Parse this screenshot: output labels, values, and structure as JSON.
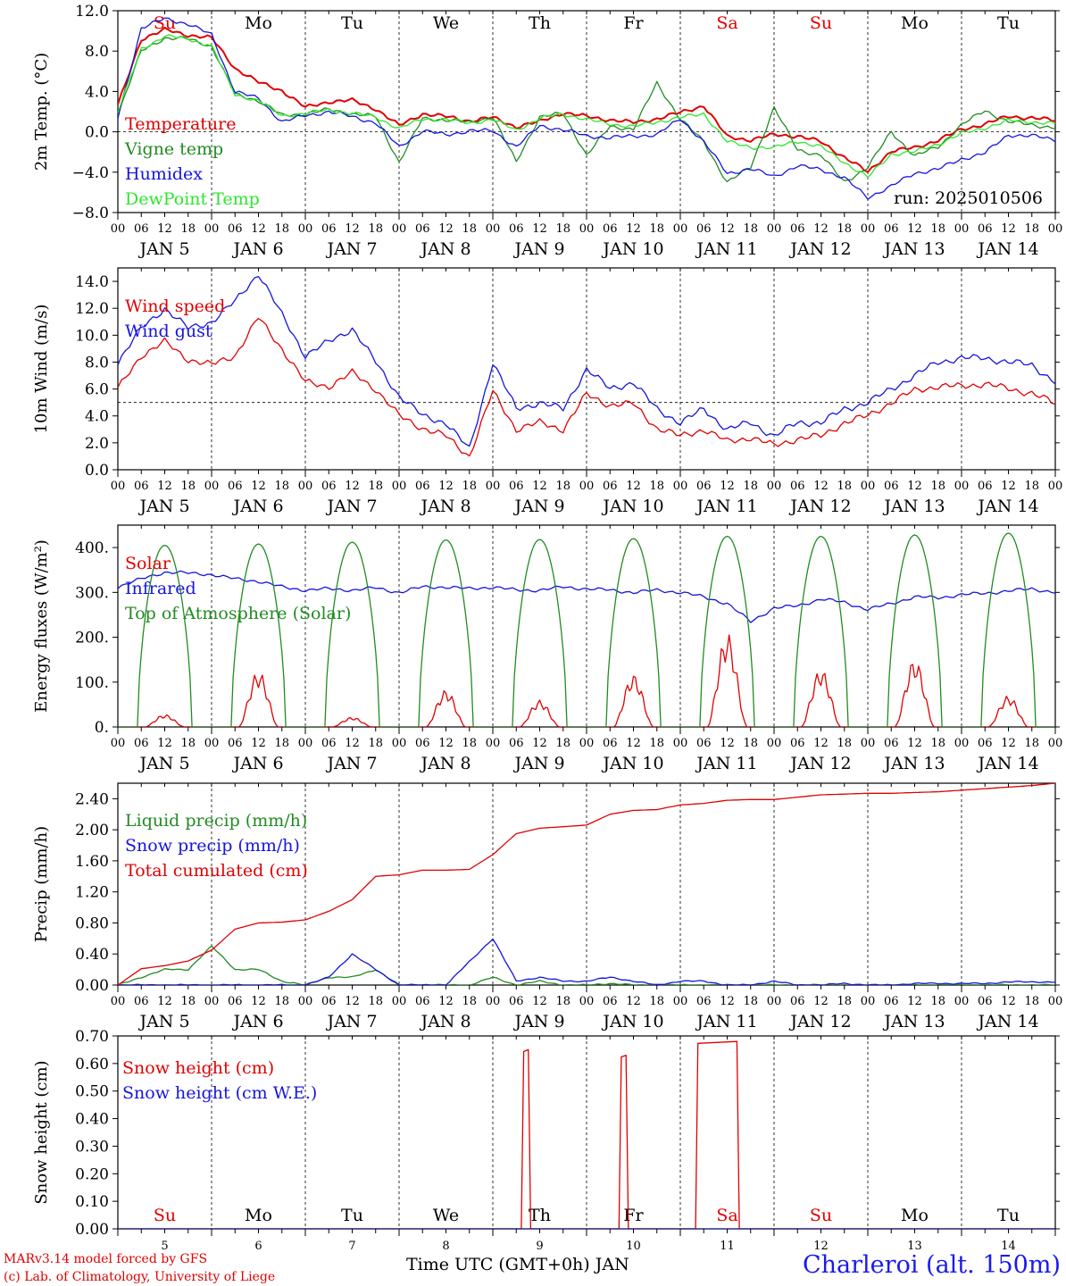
{
  "chart_data": [
    {
      "type": "line",
      "ylabel": "2m Temp. (°C)",
      "ylim": [
        -8,
        12
      ],
      "yticks": [
        "12.0",
        "8.0",
        "4.0",
        "0.0",
        "−4.0",
        "−8.0"
      ],
      "ytick_values": [
        12,
        8,
        4,
        0,
        -4,
        -8
      ],
      "reference_line": 0,
      "annotation": "run: 2025010506",
      "weekday_labels": [
        "Su",
        "Mo",
        "Tu",
        "We",
        "Th",
        "Fr",
        "Sa",
        "Su",
        "Mo",
        "Tu"
      ],
      "weekday_colors": [
        "#e00000",
        "#000000",
        "#000000",
        "#000000",
        "#000000",
        "#000000",
        "#e00000",
        "#e00000",
        "#000000",
        "#000000"
      ],
      "x_hours": [
        0,
        6,
        12,
        18,
        24,
        30,
        36,
        42,
        48,
        54,
        60,
        66,
        72,
        78,
        84,
        90,
        96,
        102,
        108,
        114,
        120,
        126,
        132,
        138,
        144,
        150,
        156,
        162,
        168,
        174,
        180,
        186,
        192,
        198,
        204,
        210,
        216,
        222,
        228,
        234,
        240
      ],
      "series": [
        {
          "name": "Temperature",
          "color": "#e00000",
          "values": [
            2.6,
            9.2,
            10.1,
            9.6,
            9.3,
            6.3,
            4.9,
            4.1,
            2.4,
            3.0,
            3.1,
            2.3,
            0.6,
            1.8,
            1.5,
            1.1,
            1.4,
            0.5,
            1.0,
            1.9,
            1.5,
            1.2,
            0.9,
            1.3,
            1.9,
            2.6,
            -0.5,
            -0.8,
            -0.3,
            -0.4,
            -1.0,
            -2.5,
            -4.0,
            -1.9,
            -1.6,
            -0.8,
            0.2,
            0.8,
            1.5,
            1.4,
            1.1
          ]
        },
        {
          "name": "Vigne temp",
          "color": "#228b22",
          "values": [
            1.7,
            8.0,
            9.3,
            9.2,
            8.5,
            3.7,
            3.1,
            1.6,
            1.8,
            2.2,
            1.8,
            1.5,
            -3.0,
            1.3,
            1.2,
            0.9,
            1.5,
            -3.0,
            1.5,
            1.8,
            -2.3,
            0.5,
            0.3,
            4.8,
            1.3,
            -1.0,
            -5.0,
            -3.5,
            2.4,
            -1.8,
            -2.3,
            -5.0,
            -3.5,
            0.0,
            -2.4,
            -1.5,
            0.7,
            2.1,
            1.0,
            0.7,
            0.4
          ]
        },
        {
          "name": "Humidex",
          "color": "#1515dd",
          "values": [
            1.4,
            10.3,
            11.2,
            10.7,
            9.6,
            4.0,
            3.3,
            1.0,
            1.6,
            2.0,
            1.5,
            0.9,
            -1.5,
            0.1,
            -0.3,
            0.1,
            0.1,
            -1.5,
            0.6,
            0.2,
            -0.4,
            -0.6,
            -0.4,
            -0.3,
            1.3,
            -1.0,
            -4.1,
            -3.7,
            -4.4,
            -3.4,
            -3.7,
            -4.6,
            -6.5,
            -5.4,
            -4.1,
            -3.7,
            -2.7,
            -2.1,
            -0.3,
            -0.4,
            -0.8
          ]
        },
        {
          "name": "DewPoint Temp",
          "color": "#2ee62e",
          "values": [
            2.0,
            8.2,
            9.5,
            9.2,
            8.5,
            3.7,
            3.1,
            1.6,
            1.8,
            2.2,
            1.8,
            1.5,
            0.3,
            1.3,
            1.2,
            0.9,
            1.2,
            0.2,
            1.3,
            1.8,
            1.2,
            0.8,
            0.5,
            1.0,
            1.4,
            1.8,
            -1.0,
            -1.5,
            -1.6,
            -0.9,
            -1.5,
            -3.0,
            -4.5,
            -2.2,
            -2.0,
            -1.2,
            -0.2,
            0.4,
            1.1,
            1.0,
            0.8
          ]
        }
      ]
    },
    {
      "type": "line",
      "ylabel": "10m Wind (m/s)",
      "ylim": [
        0,
        15
      ],
      "yticks": [
        "14.0",
        "12.0",
        "10.0",
        "8.0",
        "6.0",
        "4.0",
        "2.0",
        "0.0"
      ],
      "ytick_values": [
        14,
        12,
        10,
        8,
        6,
        4,
        2,
        0
      ],
      "reference_line": 5,
      "x_hours": [
        0,
        6,
        12,
        18,
        24,
        30,
        36,
        42,
        48,
        54,
        60,
        66,
        72,
        78,
        84,
        90,
        96,
        102,
        108,
        114,
        120,
        126,
        132,
        138,
        144,
        150,
        156,
        162,
        168,
        174,
        180,
        186,
        192,
        198,
        204,
        210,
        216,
        222,
        228,
        234,
        240
      ],
      "series": [
        {
          "name": "Wind speed",
          "color": "#e00000",
          "values": [
            6.0,
            8.5,
            9.5,
            8.2,
            7.8,
            8.5,
            11.3,
            9.0,
            6.5,
            6.2,
            7.2,
            6.0,
            4.0,
            3.1,
            2.5,
            1.0,
            5.8,
            3.0,
            3.5,
            3.0,
            5.6,
            4.8,
            4.9,
            3.1,
            2.5,
            3.0,
            2.1,
            2.4,
            1.8,
            2.3,
            2.5,
            3.5,
            4.0,
            5.0,
            5.9,
            6.2,
            6.2,
            6.4,
            6.0,
            5.7,
            4.9
          ]
        },
        {
          "name": "Wind gust",
          "color": "#1515dd",
          "values": [
            8.0,
            10.5,
            12.0,
            10.5,
            11.0,
            12.5,
            14.6,
            11.5,
            8.5,
            9.5,
            10.5,
            8.0,
            5.5,
            4.0,
            3.5,
            1.5,
            8.0,
            4.5,
            5.0,
            4.5,
            7.5,
            6.0,
            6.5,
            4.5,
            3.5,
            4.5,
            3.0,
            3.5,
            2.5,
            3.5,
            3.5,
            4.5,
            5.0,
            6.0,
            7.0,
            8.0,
            8.3,
            8.3,
            8.0,
            7.8,
            6.5
          ]
        }
      ]
    },
    {
      "type": "line",
      "ylabel": "Energy fluxes (W/m²)",
      "ylim": [
        0,
        450
      ],
      "yticks": [
        "400.",
        "300.",
        "200.",
        "100.",
        "0."
      ],
      "ytick_values": [
        400,
        300,
        200,
        100,
        0
      ],
      "x_hours": [
        0,
        6,
        12,
        18,
        24,
        30,
        36,
        42,
        48,
        54,
        60,
        66,
        72,
        78,
        84,
        90,
        96,
        102,
        108,
        114,
        120,
        126,
        132,
        138,
        144,
        150,
        156,
        162,
        168,
        174,
        180,
        186,
        192,
        198,
        204,
        210,
        216,
        222,
        228,
        234,
        240
      ],
      "series": [
        {
          "name": "Solar",
          "color": "#e00000",
          "peak_values": [
            28,
            125,
            22,
            83,
            60,
            118,
            210,
            130,
            152,
            70
          ]
        },
        {
          "name": "Infrared",
          "color": "#1515dd",
          "values": [
            312,
            330,
            345,
            343,
            340,
            330,
            325,
            312,
            305,
            308,
            305,
            310,
            300,
            312,
            312,
            308,
            312,
            305,
            305,
            312,
            308,
            305,
            300,
            305,
            300,
            290,
            275,
            235,
            265,
            270,
            285,
            278,
            262,
            275,
            290,
            288,
            295,
            298,
            303,
            308,
            300
          ]
        },
        {
          "name": "Top of Atmosphere (Solar)",
          "color": "#228b22",
          "peak_values": [
            405,
            408,
            412,
            417,
            418,
            420,
            425,
            425,
            428,
            432
          ]
        }
      ]
    },
    {
      "type": "line",
      "ylabel": "Precip (mm/h)",
      "ylim": [
        0,
        2.6
      ],
      "yticks": [
        "2.40",
        "2.00",
        "1.60",
        "1.20",
        "0.80",
        "0.40",
        "0.00"
      ],
      "ytick_values": [
        2.4,
        2.0,
        1.6,
        1.2,
        0.8,
        0.4,
        0.0
      ],
      "x_hours": [
        0,
        6,
        12,
        18,
        24,
        30,
        36,
        42,
        48,
        54,
        60,
        66,
        72,
        78,
        84,
        90,
        96,
        102,
        108,
        114,
        120,
        126,
        132,
        138,
        144,
        150,
        156,
        162,
        168,
        174,
        180,
        186,
        192,
        198,
        204,
        210,
        216,
        222,
        228,
        234,
        240
      ],
      "series": [
        {
          "name": "Liquid precip (mm/h)",
          "color": "#228b22",
          "values": [
            0.0,
            0.1,
            0.2,
            0.2,
            0.5,
            0.2,
            0.2,
            0.05,
            0.0,
            0.1,
            0.1,
            0.2,
            0.0,
            0.0,
            0.0,
            0.0,
            0.1,
            0.0,
            0.05,
            0.0,
            0.0,
            0.02,
            0.0,
            0.0,
            0.0,
            0.0,
            0.0,
            0.0,
            0.0,
            0.0,
            0.0,
            0.0,
            0.0,
            0.0,
            0.0,
            0.0,
            0.0,
            0.0,
            0.0,
            0.0,
            0.0
          ]
        },
        {
          "name": "Snow precip (mm/h)",
          "color": "#1515dd",
          "values": [
            0.0,
            0.0,
            0.0,
            0.0,
            0.0,
            0.0,
            0.0,
            0.0,
            0.0,
            0.1,
            0.4,
            0.2,
            0.0,
            0.0,
            0.0,
            0.3,
            0.6,
            0.05,
            0.1,
            0.05,
            0.05,
            0.1,
            0.05,
            0.0,
            0.05,
            0.05,
            0.0,
            0.0,
            0.05,
            0.0,
            0.0,
            0.02,
            0.0,
            0.0,
            0.02,
            0.02,
            0.02,
            0.02,
            0.04,
            0.04,
            0.04
          ]
        },
        {
          "name": "Total cumulated (cm)",
          "color": "#e00000",
          "values": [
            0.0,
            0.21,
            0.25,
            0.31,
            0.45,
            0.72,
            0.8,
            0.81,
            0.84,
            0.95,
            1.1,
            1.4,
            1.42,
            1.48,
            1.48,
            1.49,
            1.68,
            1.95,
            2.02,
            2.04,
            2.06,
            2.2,
            2.25,
            2.26,
            2.32,
            2.34,
            2.38,
            2.39,
            2.39,
            2.42,
            2.45,
            2.46,
            2.47,
            2.47,
            2.48,
            2.49,
            2.51,
            2.53,
            2.55,
            2.57,
            2.6
          ]
        }
      ]
    },
    {
      "type": "line",
      "ylabel": "Snow height (cm)",
      "ylim": [
        0,
        0.7
      ],
      "yticks": [
        "0.70",
        "0.60",
        "0.50",
        "0.40",
        "0.30",
        "0.20",
        "0.10",
        "0.00"
      ],
      "ytick_values": [
        0.7,
        0.6,
        0.5,
        0.4,
        0.3,
        0.2,
        0.1,
        0.0
      ],
      "weekday_labels": [
        "Su",
        "Mo",
        "Tu",
        "We",
        "Th",
        "Fr",
        "Sa",
        "Su",
        "Mo",
        "Tu"
      ],
      "weekday_colors": [
        "#e00000",
        "#000000",
        "#000000",
        "#000000",
        "#000000",
        "#000000",
        "#e00000",
        "#e00000",
        "#000000",
        "#000000"
      ],
      "day_numbers": [
        "5",
        "6",
        "7",
        "8",
        "9",
        "10",
        "11",
        "12",
        "13",
        "14"
      ],
      "series": [
        {
          "name": "Snow height (cm)",
          "color": "#e00000",
          "spikes": [
            [
              104.5,
              0.65
            ],
            [
              129.5,
              0.63
            ],
            [
              153.5,
              0.68
            ]
          ]
        },
        {
          "name": "Snow height (cm W.E.)",
          "color": "#1515dd",
          "values": [
            0,
            0
          ]
        }
      ]
    }
  ],
  "x_axis": {
    "hour_ticks": [
      "00",
      "06",
      "12",
      "18"
    ],
    "date_labels": [
      "JAN  5",
      "JAN  6",
      "JAN  7",
      "JAN  8",
      "JAN  9",
      "JAN 10",
      "JAN 11",
      "JAN 12",
      "JAN 13",
      "JAN 14"
    ]
  },
  "footer": {
    "model_line": "MARv3.14 model forced by GFS",
    "copyright_line": "(c) Lab. of Climatology, University of Liege",
    "time_label": "Time UTC (GMT+0h) JAN",
    "station": "Charleroi (alt. 150m)"
  }
}
